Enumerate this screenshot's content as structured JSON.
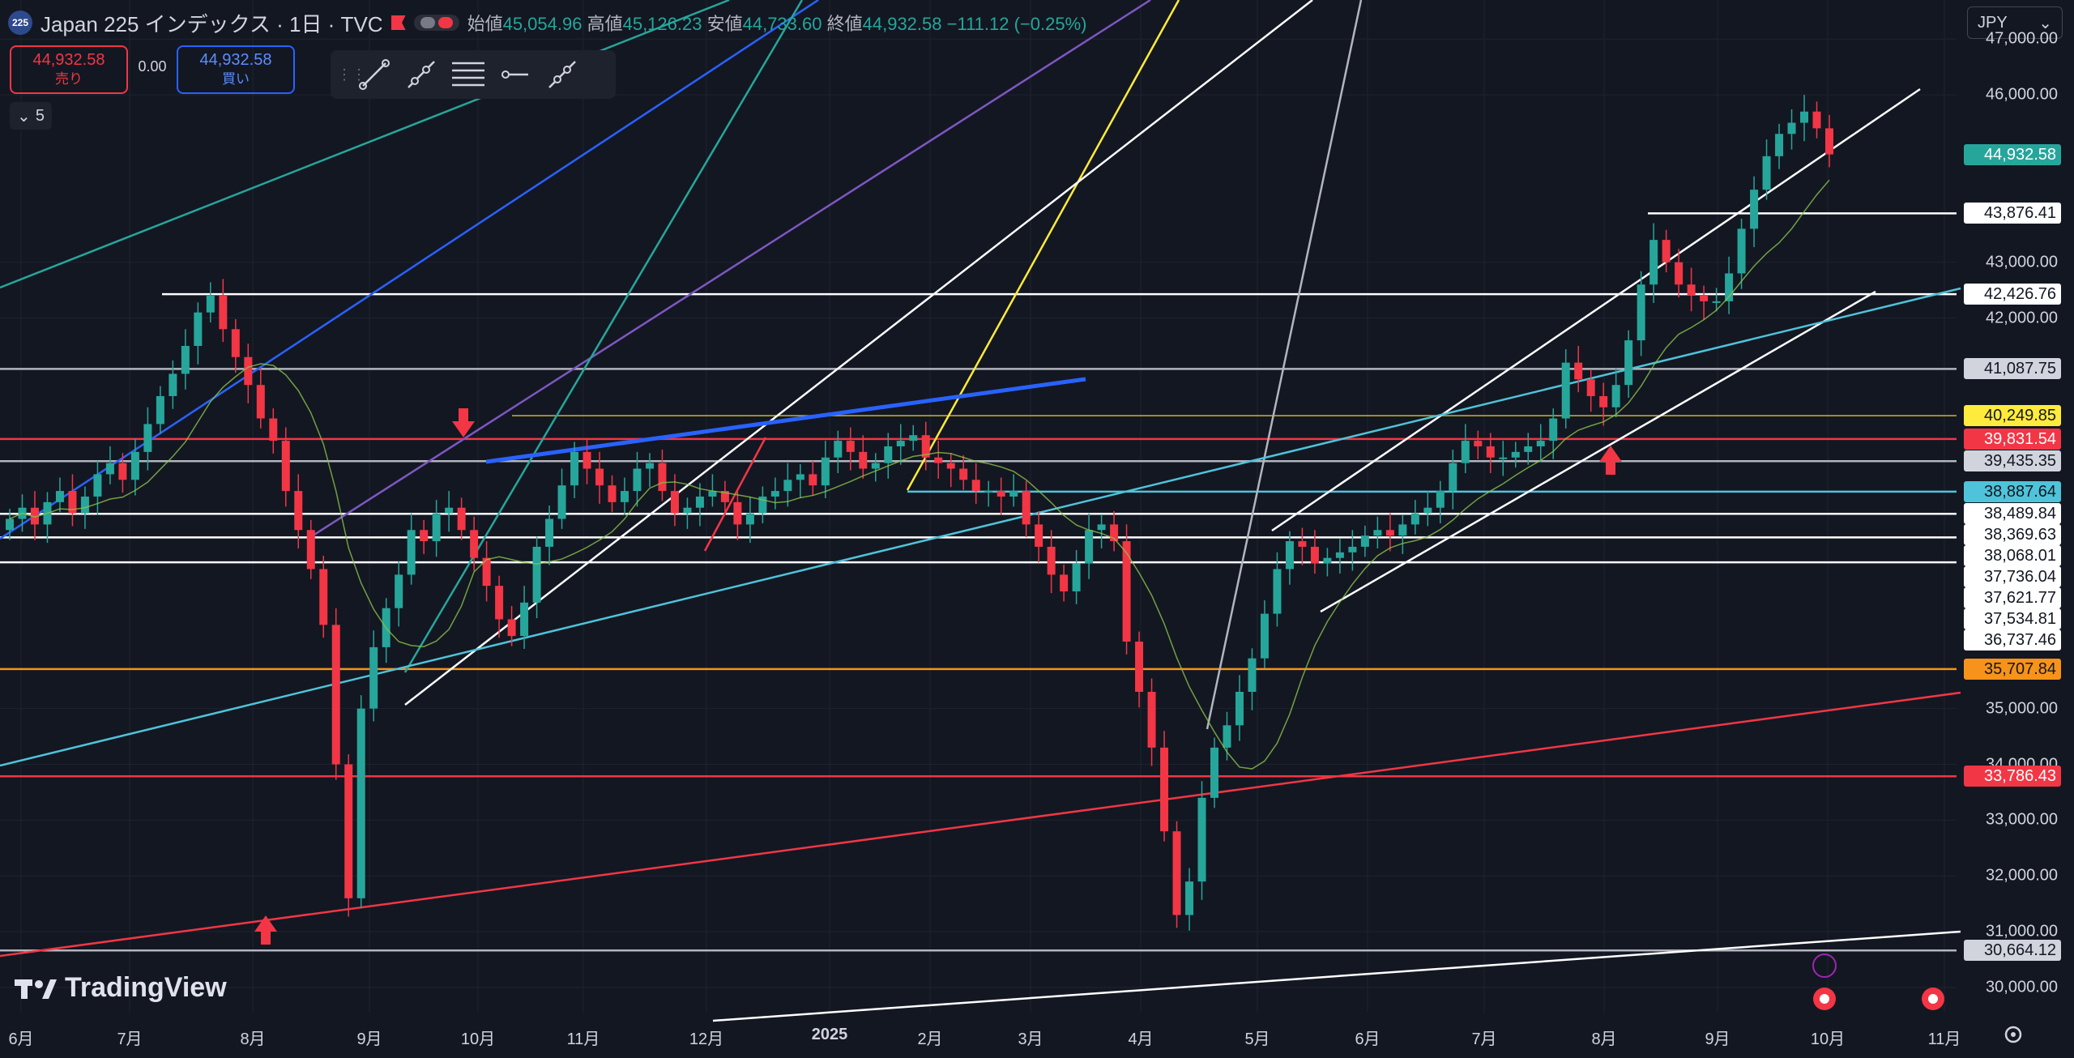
{
  "header": {
    "symbol_badge": "225",
    "title": "Japan 225 インデックス · 1日 · TVC",
    "open_label": "始値",
    "open": "45,054.96",
    "high_label": "高値",
    "high": "45,126.23",
    "low_label": "安値",
    "low": "44,733.60",
    "close_label": "終値",
    "close": "44,932.58",
    "change": "−111.12 (−0.25%)"
  },
  "trade": {
    "sell_price": "44,932.58",
    "sell_label": "売り",
    "spread": "0.00",
    "buy_price": "44,932.58",
    "buy_label": "買い"
  },
  "indicator_toggle": "5",
  "currency": "JPY",
  "toolbar": {
    "icons": [
      "trend-line-icon",
      "ray-icon",
      "parallel-channel-icon",
      "horizontal-lines-icon",
      "horizontal-ray-icon",
      "extended-line-icon"
    ]
  },
  "branding": "TradingView",
  "colors": {
    "up": "#26a69a",
    "down": "#f23645",
    "background": "#131722"
  },
  "chart_data": {
    "type": "candlestick",
    "title": "Japan 225 インデックス · 1日 · TVC",
    "x_ticks": [
      "6月",
      "7月",
      "8月",
      "9月",
      "10月",
      "11月",
      "12月",
      "2025",
      "2月",
      "3月",
      "4月",
      "5月",
      "6月",
      "7月",
      "8月",
      "9月",
      "10月",
      "11月"
    ],
    "y_ticks": [
      "47,000.00",
      "46,000.00",
      "43,000.00",
      "42,000.00",
      "35,000.00",
      "34,000.00",
      "33,000.00",
      "32,000.00",
      "31,000.00",
      "30,000.00"
    ],
    "ylim": [
      29700,
      47400
    ],
    "last_price": "44,932.58",
    "price_labels": [
      {
        "value": "44,932.58",
        "kind": "last"
      },
      {
        "value": "43,876.41",
        "kind": "white"
      },
      {
        "value": "42,426.76",
        "kind": "white"
      },
      {
        "value": "41,087.75",
        "kind": "gray"
      },
      {
        "value": "40,249.85",
        "kind": "yellow"
      },
      {
        "value": "39,831.54",
        "kind": "red"
      },
      {
        "value": "39,435.35",
        "kind": "gray"
      },
      {
        "value": "38,887.64",
        "kind": "cyan"
      },
      {
        "value": "38,489.84",
        "kind": "white"
      },
      {
        "value": "38,369.63",
        "kind": "white"
      },
      {
        "value": "38,068.01",
        "kind": "white"
      },
      {
        "value": "37,736.04",
        "kind": "white"
      },
      {
        "value": "37,621.77",
        "kind": "white"
      },
      {
        "value": "37,534.81",
        "kind": "white"
      },
      {
        "value": "36,737.46",
        "kind": "white"
      },
      {
        "value": "35,707.84",
        "kind": "orange"
      },
      {
        "value": "33,786.43",
        "kind": "red"
      },
      {
        "value": "30,664.12",
        "kind": "gray"
      }
    ],
    "horizontal_lines": [
      43876.41,
      42426.76,
      41087.75,
      40249.85,
      39831.54,
      39435.35,
      38887.64,
      38489.84,
      38068.01,
      37621.77,
      35707.84,
      33786.43,
      30664.12
    ],
    "closes": [
      38400,
      38600,
      38300,
      38700,
      38900,
      38500,
      38800,
      39200,
      39400,
      39100,
      39600,
      40100,
      40600,
      41000,
      41500,
      42100,
      42400,
      41800,
      41300,
      40800,
      40200,
      39800,
      38900,
      38200,
      37500,
      36500,
      34000,
      31600,
      35000,
      36100,
      36800,
      37400,
      38200,
      38000,
      38500,
      38600,
      38200,
      37700,
      37200,
      36600,
      36300,
      36900,
      37900,
      38400,
      39000,
      39600,
      39300,
      39000,
      38700,
      38900,
      39300,
      39400,
      38900,
      38500,
      38600,
      38800,
      38900,
      38700,
      38300,
      38500,
      38800,
      38900,
      39100,
      39200,
      39000,
      39500,
      39800,
      39600,
      39300,
      39400,
      39700,
      39800,
      39900,
      39500,
      39400,
      39300,
      39100,
      38900,
      38900,
      38800,
      38900,
      38300,
      37900,
      37400,
      37100,
      37600,
      38200,
      38300,
      38000,
      36200,
      35300,
      34300,
      32800,
      31300,
      31900,
      33400,
      34300,
      34700,
      35300,
      35900,
      36700,
      37500,
      38000,
      37900,
      37600,
      37700,
      37800,
      37900,
      38100,
      38200,
      38100,
      38300,
      38500,
      38600,
      38900,
      39400,
      39800,
      39700,
      39500,
      39500,
      39600,
      39700,
      39800,
      40200,
      41200,
      40900,
      40600,
      40400,
      40800,
      41600,
      42600,
      43400,
      43000,
      42600,
      42400,
      42300,
      42300,
      42800,
      43600,
      44300,
      44900,
      45300,
      45500,
      45700,
      45400,
      44932.58
    ]
  }
}
